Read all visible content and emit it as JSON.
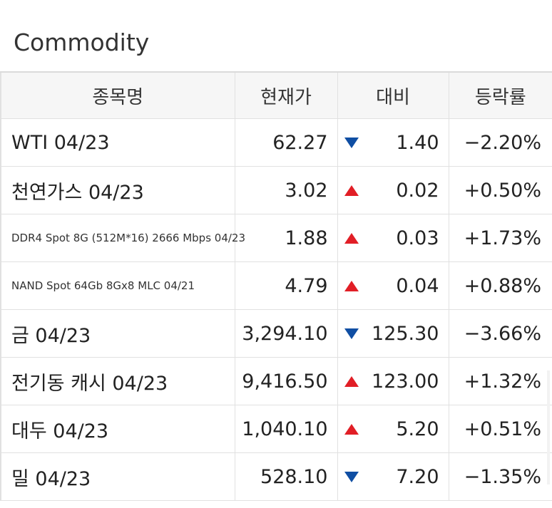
{
  "title": "Commodity",
  "colors": {
    "rise": "#d01b22",
    "fall": "#124e96",
    "header_bg": "#f6f6f6",
    "border": "#e1e1e1"
  },
  "table": {
    "headers": [
      "종목명",
      "현재가",
      "대비",
      "등락률"
    ],
    "rows": [
      {
        "name": "WTI 04/23",
        "price": "62.27",
        "direction": "down",
        "direction_icon": "triangle-down-icon",
        "change": "1.40",
        "rate": "−2.20%"
      },
      {
        "name": "천연가스 04/23",
        "price": "3.02",
        "direction": "up",
        "direction_icon": "triangle-up-icon",
        "change": "0.02",
        "rate": "+0.50%"
      },
      {
        "name": "DDR4 Spot 8G (512M*16) 2666 Mbps 04/23",
        "price": "1.88",
        "direction": "up",
        "direction_icon": "triangle-up-icon",
        "change": "0.03",
        "rate": "+1.73%"
      },
      {
        "name": "NAND Spot 64Gb 8Gx8 MLC 04/21",
        "price": "4.79",
        "direction": "up",
        "direction_icon": "triangle-up-icon",
        "change": "0.04",
        "rate": "+0.88%"
      },
      {
        "name": "금 04/23",
        "price": "3,294.10",
        "direction": "down",
        "direction_icon": "triangle-down-icon",
        "change": "125.30",
        "rate": "−3.66%"
      },
      {
        "name": "전기동 캐시 04/23",
        "price": "9,416.50",
        "direction": "up",
        "direction_icon": "triangle-up-icon",
        "change": "123.00",
        "rate": "+1.32%"
      },
      {
        "name": "대두 04/23",
        "price": "1,040.10",
        "direction": "up",
        "direction_icon": "triangle-up-icon",
        "change": "5.20",
        "rate": "+0.51%"
      },
      {
        "name": "밀 04/23",
        "price": "528.10",
        "direction": "down",
        "direction_icon": "triangle-down-icon",
        "change": "7.20",
        "rate": "−1.35%"
      }
    ]
  }
}
